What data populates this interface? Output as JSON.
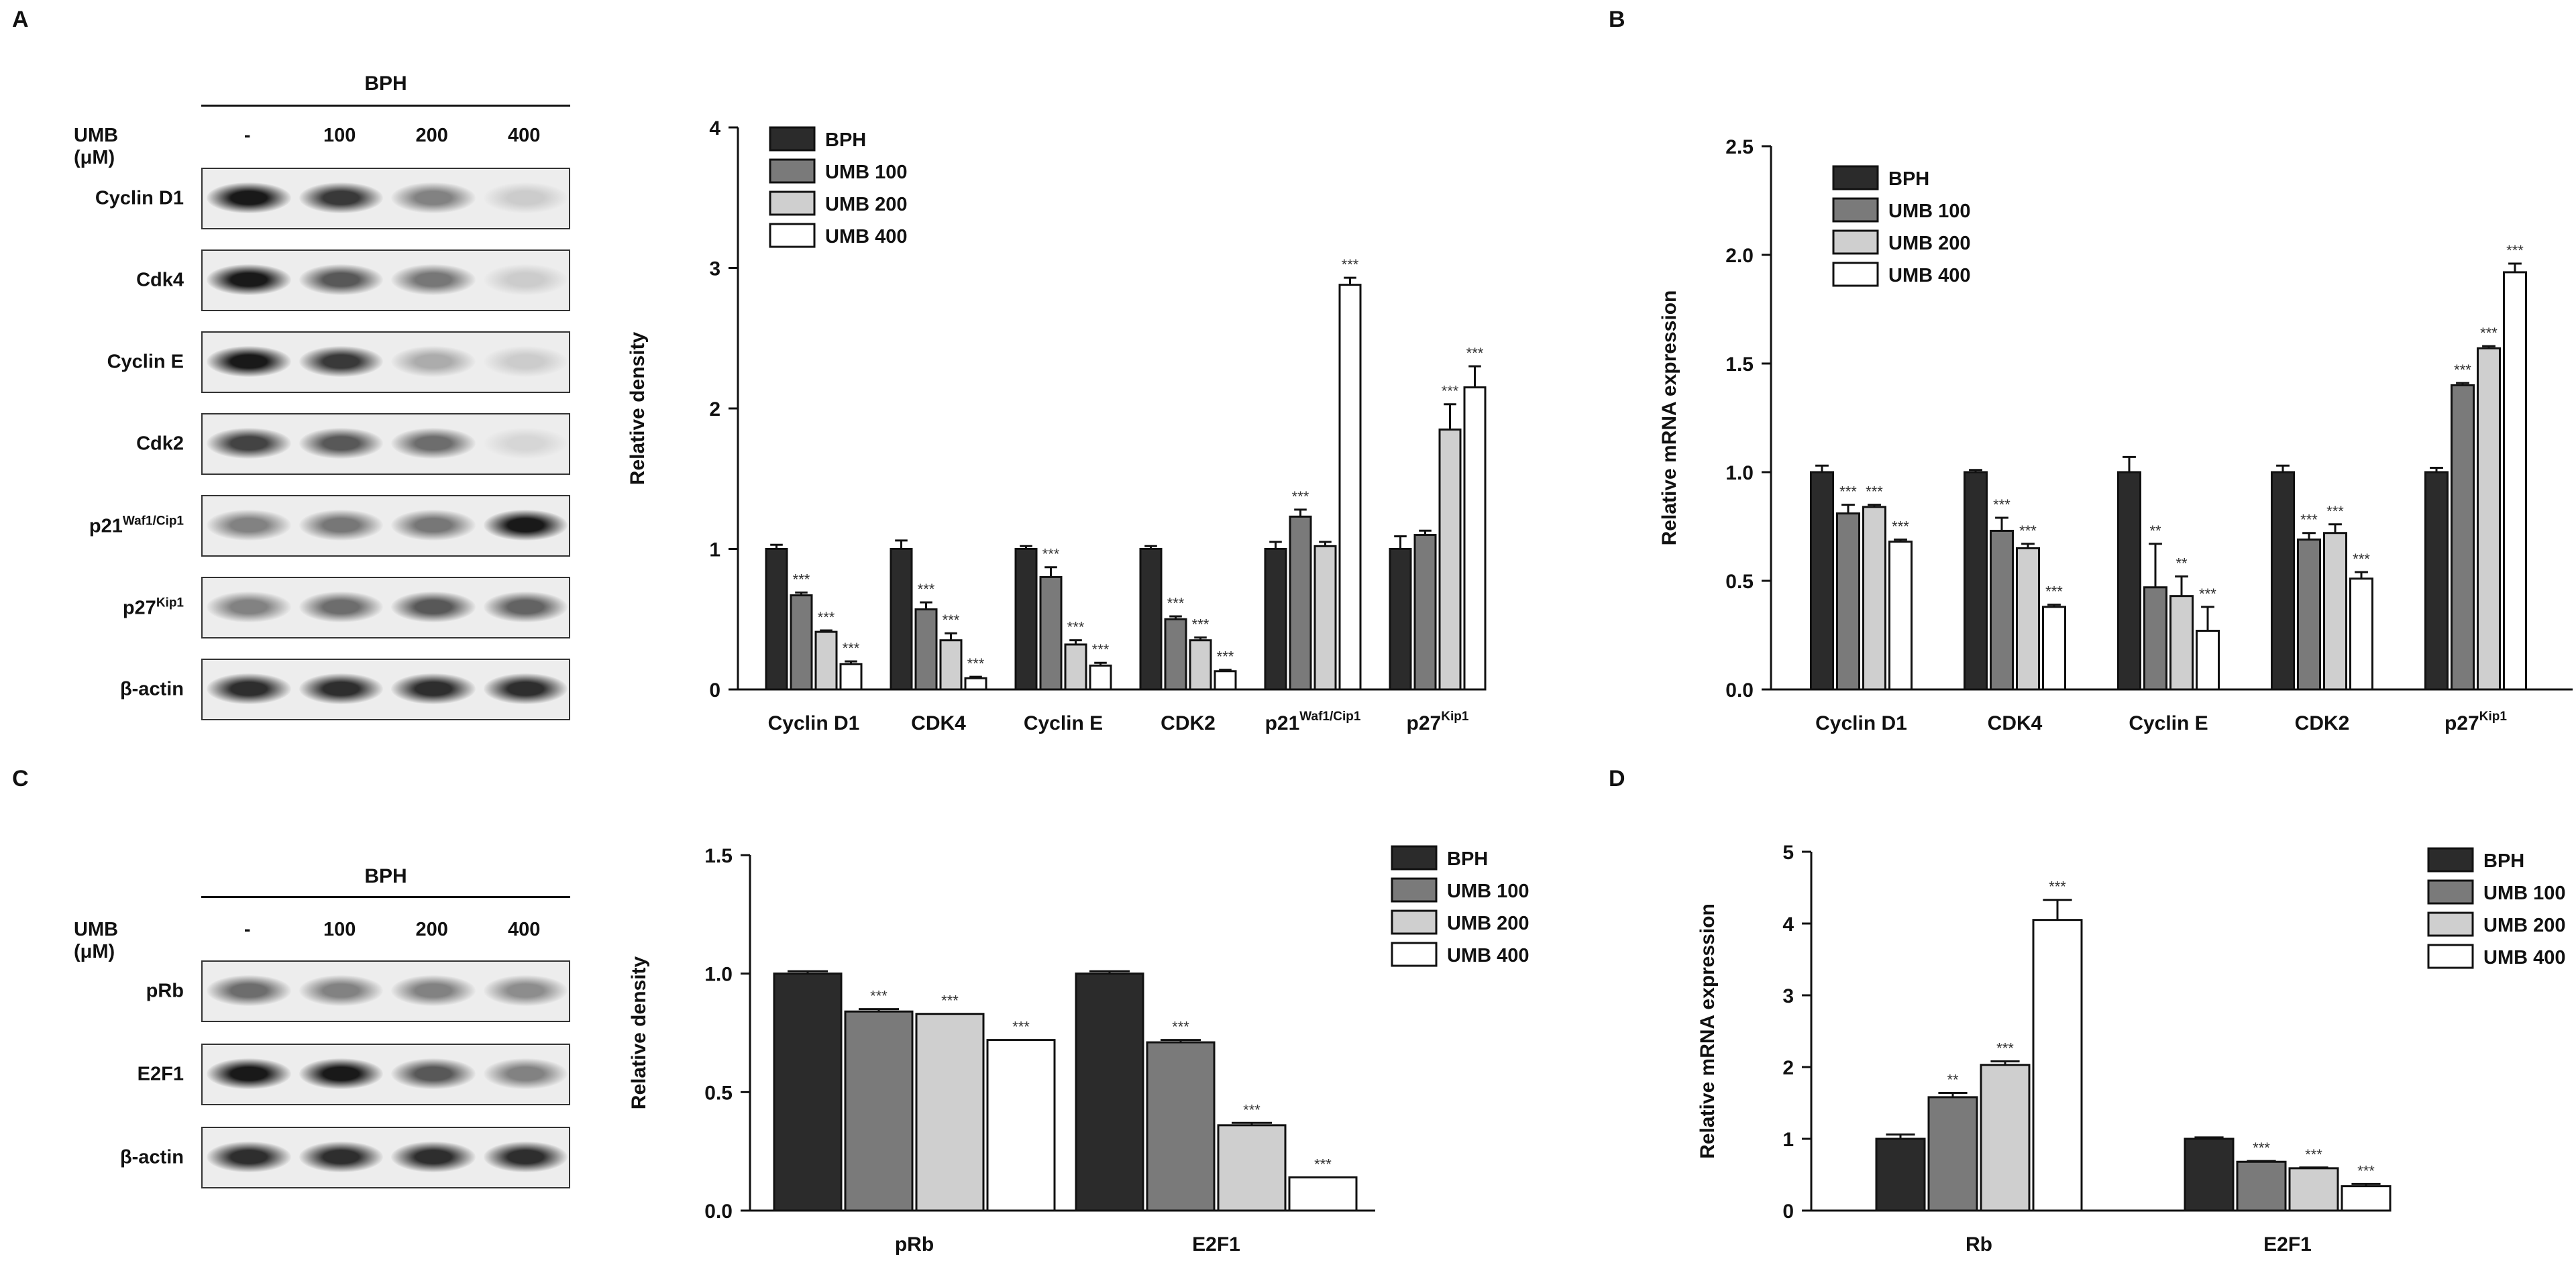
{
  "panels": {
    "a": "A",
    "b": "B",
    "c": "C",
    "d": "D"
  },
  "blot_a": {
    "group_label": "BPH",
    "treatment_label": "UMB (μM)",
    "doses": [
      "-",
      "100",
      "200",
      "400"
    ],
    "rows": [
      {
        "name": "Cyclin D1",
        "sup": "",
        "intensity": [
          1.0,
          0.85,
          0.5,
          0.15
        ]
      },
      {
        "name": "Cdk4",
        "sup": "",
        "intensity": [
          1.0,
          0.7,
          0.55,
          0.15
        ]
      },
      {
        "name": "Cyclin E",
        "sup": "",
        "intensity": [
          1.0,
          0.85,
          0.3,
          0.15
        ]
      },
      {
        "name": "Cdk2",
        "sup": "",
        "intensity": [
          0.8,
          0.7,
          0.6,
          0.1
        ]
      },
      {
        "name": "p21",
        "sup": "Waf1/Cip1",
        "intensity": [
          0.5,
          0.55,
          0.55,
          1.0
        ]
      },
      {
        "name": "p27",
        "sup": "Kip1",
        "intensity": [
          0.5,
          0.6,
          0.7,
          0.65
        ]
      },
      {
        "name": "β-actin",
        "sup": "",
        "intensity": [
          0.9,
          0.9,
          0.9,
          0.9
        ]
      }
    ]
  },
  "blot_c": {
    "group_label": "BPH",
    "treatment_label": "UMB (μM)",
    "doses": [
      "-",
      "100",
      "200",
      "400"
    ],
    "rows": [
      {
        "name": "pRb",
        "sup": "",
        "intensity": [
          0.6,
          0.5,
          0.5,
          0.45
        ]
      },
      {
        "name": "E2F1",
        "sup": "",
        "intensity": [
          1.0,
          1.0,
          0.7,
          0.5
        ]
      },
      {
        "name": "β-actin",
        "sup": "",
        "intensity": [
          0.9,
          0.9,
          0.9,
          0.9
        ]
      }
    ]
  },
  "colors": {
    "bph": "#2b2b2b",
    "umb100": "#7a7a7a",
    "umb200": "#cfcfcf",
    "umb400": "#ffffff",
    "axis": "#111111"
  },
  "chart_data": [
    {
      "id": "chartA",
      "type": "bar",
      "ylabel": "Relative density",
      "xlabel": "",
      "ylim": [
        0,
        4
      ],
      "yticks": [
        "0",
        "1",
        "2",
        "3",
        "4"
      ],
      "legend_position": "top-left",
      "categories": [
        {
          "name": "Cyclin D1",
          "sup": ""
        },
        {
          "name": "CDK4",
          "sup": ""
        },
        {
          "name": "Cyclin E",
          "sup": ""
        },
        {
          "name": "CDK2",
          "sup": ""
        },
        {
          "name": "p21",
          "sup": "Waf1/Cip1"
        },
        {
          "name": "p27",
          "sup": "Kip1"
        }
      ],
      "series": [
        {
          "name": "BPH",
          "values": [
            1.0,
            1.0,
            1.0,
            1.0,
            1.0,
            1.0
          ],
          "errors": [
            0.03,
            0.06,
            0.02,
            0.02,
            0.05,
            0.09
          ],
          "sig": [
            "",
            "",
            "",
            "",
            "",
            ""
          ]
        },
        {
          "name": "UMB 100",
          "values": [
            0.67,
            0.57,
            0.8,
            0.5,
            1.23,
            1.1
          ],
          "errors": [
            0.02,
            0.05,
            0.07,
            0.02,
            0.05,
            0.03
          ],
          "sig": [
            "***",
            "***",
            "***",
            "***",
            "***",
            ""
          ]
        },
        {
          "name": "UMB 200",
          "values": [
            0.41,
            0.35,
            0.32,
            0.35,
            1.02,
            1.85
          ],
          "errors": [
            0.01,
            0.05,
            0.03,
            0.02,
            0.03,
            0.18
          ],
          "sig": [
            "***",
            "***",
            "***",
            "***",
            "",
            "***"
          ]
        },
        {
          "name": "UMB 400",
          "values": [
            0.18,
            0.08,
            0.17,
            0.13,
            2.88,
            2.15
          ],
          "errors": [
            0.02,
            0.01,
            0.02,
            0.01,
            0.05,
            0.15
          ],
          "sig": [
            "***",
            "***",
            "***",
            "***",
            "***",
            "***"
          ]
        }
      ]
    },
    {
      "id": "chartB",
      "type": "bar",
      "ylabel": "Relative mRNA expression",
      "xlabel": "",
      "ylim": [
        0,
        2.5
      ],
      "yticks": [
        "0.0",
        "0.5",
        "1.0",
        "1.5",
        "2.0",
        "2.5"
      ],
      "legend_position": "top-left",
      "categories": [
        {
          "name": "Cyclin D1",
          "sup": ""
        },
        {
          "name": "CDK4",
          "sup": ""
        },
        {
          "name": "Cyclin E",
          "sup": ""
        },
        {
          "name": "CDK2",
          "sup": ""
        },
        {
          "name": "p27",
          "sup": "Kip1"
        }
      ],
      "series": [
        {
          "name": "BPH",
          "values": [
            1.0,
            1.0,
            1.0,
            1.0,
            1.0
          ],
          "errors": [
            0.03,
            0.01,
            0.07,
            0.03,
            0.02
          ],
          "sig": [
            "",
            "",
            "",
            "",
            ""
          ]
        },
        {
          "name": "UMB 100",
          "values": [
            0.81,
            0.73,
            0.47,
            0.69,
            1.4
          ],
          "errors": [
            0.04,
            0.06,
            0.2,
            0.03,
            0.01
          ],
          "sig": [
            "***",
            "***",
            "**",
            "***",
            "***"
          ]
        },
        {
          "name": "UMB 200",
          "values": [
            0.84,
            0.65,
            0.43,
            0.72,
            1.57
          ],
          "errors": [
            0.01,
            0.02,
            0.09,
            0.04,
            0.01
          ],
          "sig": [
            "***",
            "***",
            "**",
            "***",
            "***"
          ]
        },
        {
          "name": "UMB 400",
          "values": [
            0.68,
            0.38,
            0.27,
            0.51,
            1.92
          ],
          "errors": [
            0.01,
            0.01,
            0.11,
            0.03,
            0.04
          ],
          "sig": [
            "***",
            "***",
            "***",
            "***",
            "***"
          ]
        }
      ]
    },
    {
      "id": "chartC",
      "type": "bar",
      "ylabel": "Relative density",
      "xlabel": "",
      "ylim": [
        0,
        1.5
      ],
      "yticks": [
        "0.0",
        "0.5",
        "1.0",
        "1.5"
      ],
      "legend_position": "top-right",
      "categories": [
        {
          "name": "pRb",
          "sup": ""
        },
        {
          "name": "E2F1",
          "sup": ""
        }
      ],
      "series": [
        {
          "name": "BPH",
          "values": [
            1.0,
            1.0
          ],
          "errors": [
            0.01,
            0.01
          ],
          "sig": [
            "",
            ""
          ]
        },
        {
          "name": "UMB 100",
          "values": [
            0.84,
            0.71
          ],
          "errors": [
            0.01,
            0.01
          ],
          "sig": [
            "***",
            "***"
          ]
        },
        {
          "name": "UMB 200",
          "values": [
            0.83,
            0.36
          ],
          "errors": [
            0.0,
            0.01
          ],
          "sig": [
            "***",
            "***"
          ]
        },
        {
          "name": "UMB 400",
          "values": [
            0.72,
            0.14
          ],
          "errors": [
            0.0,
            0.0
          ],
          "sig": [
            "***",
            "***"
          ]
        }
      ]
    },
    {
      "id": "chartD",
      "type": "bar",
      "ylabel": "Relative mRNA expression",
      "xlabel": "",
      "ylim": [
        0,
        5
      ],
      "yticks": [
        "0",
        "1",
        "2",
        "3",
        "4",
        "5"
      ],
      "legend_position": "top-right",
      "categories": [
        {
          "name": "Rb",
          "sup": ""
        },
        {
          "name": "E2F1",
          "sup": ""
        }
      ],
      "series": [
        {
          "name": "BPH",
          "values": [
            1.0,
            1.0
          ],
          "errors": [
            0.06,
            0.02
          ],
          "sig": [
            "",
            ""
          ]
        },
        {
          "name": "UMB 100",
          "values": [
            1.58,
            0.68
          ],
          "errors": [
            0.06,
            0.01
          ],
          "sig": [
            "**",
            "***"
          ]
        },
        {
          "name": "UMB 200",
          "values": [
            2.03,
            0.59
          ],
          "errors": [
            0.05,
            0.01
          ],
          "sig": [
            "***",
            "***"
          ]
        },
        {
          "name": "UMB 400",
          "values": [
            4.05,
            0.34
          ],
          "errors": [
            0.28,
            0.03
          ],
          "sig": [
            "***",
            "***"
          ]
        }
      ]
    }
  ]
}
